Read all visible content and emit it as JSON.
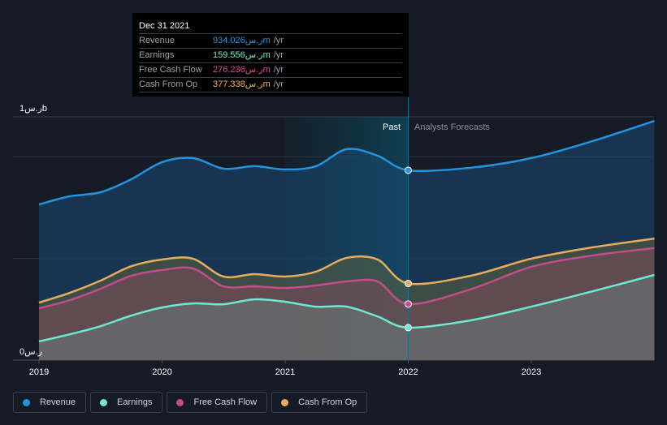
{
  "tooltip": {
    "date": "Dec 31 2021",
    "rows": [
      {
        "label": "Revenue",
        "value": "934.026ر.سm",
        "unit": "/yr",
        "color": "#2394df"
      },
      {
        "label": "Earnings",
        "value": "159.556ر.سm",
        "unit": "/yr",
        "color": "#6ee7d4"
      },
      {
        "label": "Free Cash Flow",
        "value": "276.236ر.سm",
        "unit": "/yr",
        "color": "#d8538c"
      },
      {
        "label": "Cash From Op",
        "value": "377.338ر.سm",
        "unit": "/yr",
        "color": "#f0b45c"
      }
    ]
  },
  "legend": [
    {
      "label": "Revenue",
      "color": "#2394df"
    },
    {
      "label": "Earnings",
      "color": "#6ee7d4"
    },
    {
      "label": "Free Cash Flow",
      "color": "#c44c8a"
    },
    {
      "label": "Cash From Op",
      "color": "#e8ac5c"
    }
  ],
  "chart_data": {
    "type": "area",
    "title": "",
    "xlabel": "",
    "ylabel": "",
    "currency_unit": "ر.س",
    "y_tick_labels": {
      "top": "ر.س1b",
      "bottom": "ر.س0"
    },
    "x_ticks": [
      "2019",
      "2020",
      "2021",
      "2022",
      "2023"
    ],
    "xlim": [
      2019.0,
      2024.0
    ],
    "ylim": [
      0,
      1200
    ],
    "grid": true,
    "gridlines_m": [
      0,
      500,
      1000
    ],
    "divider_x": 2022.0,
    "highlight_range": [
      2021.0,
      2022.0
    ],
    "region_labels": {
      "past": "Past",
      "forecast": "Analysts Forecasts"
    },
    "marker_x": 2022.0,
    "series": [
      {
        "name": "Revenue",
        "unit": "m",
        "color": "#2394df",
        "points": [
          [
            2019.0,
            766
          ],
          [
            2019.25,
            806
          ],
          [
            2019.5,
            826
          ],
          [
            2019.75,
            890
          ],
          [
            2020.0,
            974
          ],
          [
            2020.25,
            994
          ],
          [
            2020.5,
            942
          ],
          [
            2020.75,
            954
          ],
          [
            2021.0,
            938
          ],
          [
            2021.25,
            954
          ],
          [
            2021.5,
            1038
          ],
          [
            2021.75,
            1006
          ],
          [
            2022.0,
            934
          ],
          [
            2022.5,
            946
          ],
          [
            2023.0,
            994
          ],
          [
            2023.5,
            1078
          ],
          [
            2024.0,
            1177
          ]
        ]
      },
      {
        "name": "Cash From Op",
        "unit": "m",
        "color": "#e8ac5c",
        "points": [
          [
            2019.0,
            283
          ],
          [
            2019.25,
            331
          ],
          [
            2019.5,
            391
          ],
          [
            2019.75,
            462
          ],
          [
            2020.0,
            495
          ],
          [
            2020.25,
            499
          ],
          [
            2020.5,
            411
          ],
          [
            2020.75,
            423
          ],
          [
            2021.0,
            411
          ],
          [
            2021.25,
            435
          ],
          [
            2021.5,
            503
          ],
          [
            2021.75,
            495
          ],
          [
            2022.0,
            377
          ],
          [
            2022.5,
            414
          ],
          [
            2023.0,
            499
          ],
          [
            2023.5,
            555
          ],
          [
            2024.0,
            598
          ]
        ]
      },
      {
        "name": "Free Cash Flow",
        "unit": "m",
        "color": "#c44c8a",
        "points": [
          [
            2019.0,
            255
          ],
          [
            2019.25,
            295
          ],
          [
            2019.5,
            351
          ],
          [
            2019.75,
            415
          ],
          [
            2020.0,
            443
          ],
          [
            2020.25,
            451
          ],
          [
            2020.5,
            363
          ],
          [
            2020.75,
            363
          ],
          [
            2021.0,
            355
          ],
          [
            2021.25,
            367
          ],
          [
            2021.5,
            387
          ],
          [
            2021.75,
            387
          ],
          [
            2022.0,
            276
          ],
          [
            2022.5,
            347
          ],
          [
            2023.0,
            459
          ],
          [
            2023.5,
            515
          ],
          [
            2024.0,
            551
          ]
        ]
      },
      {
        "name": "Earnings",
        "unit": "m",
        "color": "#6ee7d4",
        "points": [
          [
            2019.0,
            92
          ],
          [
            2019.25,
            127
          ],
          [
            2019.5,
            167
          ],
          [
            2019.75,
            219
          ],
          [
            2020.0,
            259
          ],
          [
            2020.25,
            279
          ],
          [
            2020.5,
            275
          ],
          [
            2020.75,
            299
          ],
          [
            2021.0,
            287
          ],
          [
            2021.25,
            263
          ],
          [
            2021.5,
            263
          ],
          [
            2021.75,
            215
          ],
          [
            2022.0,
            160
          ],
          [
            2022.5,
            195
          ],
          [
            2023.0,
            263
          ],
          [
            2023.5,
            339
          ],
          [
            2024.0,
            419
          ]
        ]
      }
    ]
  }
}
